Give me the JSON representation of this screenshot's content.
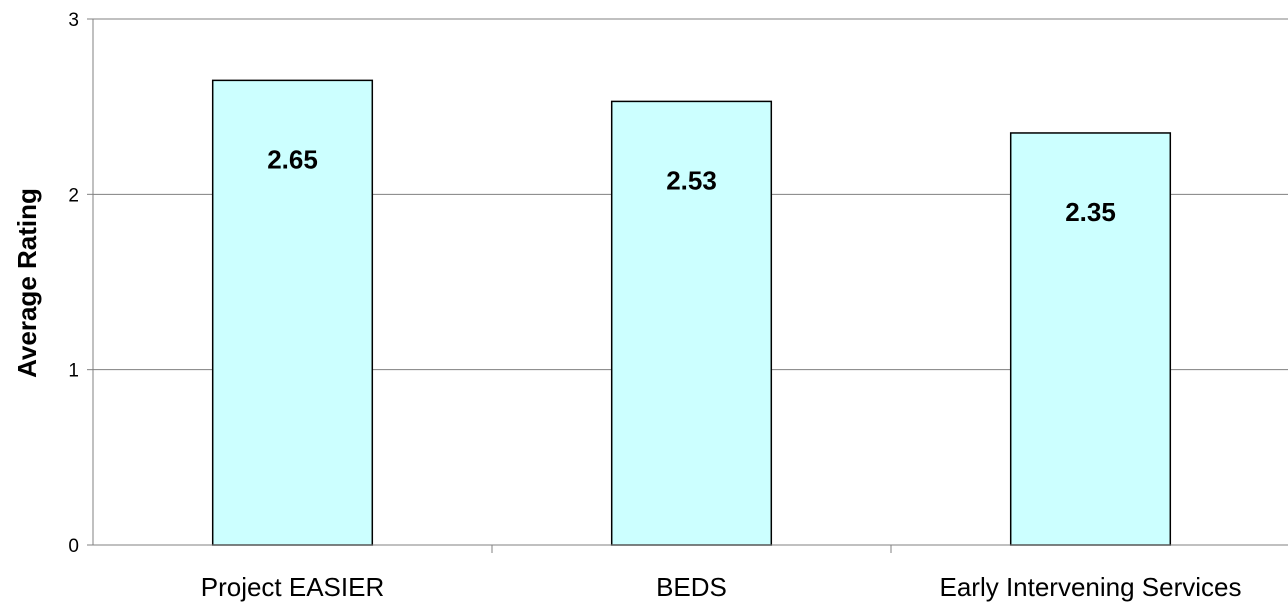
{
  "chart_data": {
    "type": "bar",
    "categories": [
      "Project EASIER",
      "BEDS",
      "Early Intervening Services"
    ],
    "values": [
      2.65,
      2.53,
      2.35
    ],
    "data_labels": [
      "2.65",
      "2.53",
      "2.35"
    ],
    "ylabel": "Average Rating",
    "xlabel": "",
    "ylim": [
      0,
      3
    ],
    "yticks": [
      "0",
      "1",
      "2",
      "3"
    ],
    "grid": true,
    "legend": "none",
    "colors": {
      "bar_fill": "#ccffff",
      "bar_stroke": "#000000",
      "grid": "#808080",
      "axis": "#808080"
    }
  }
}
